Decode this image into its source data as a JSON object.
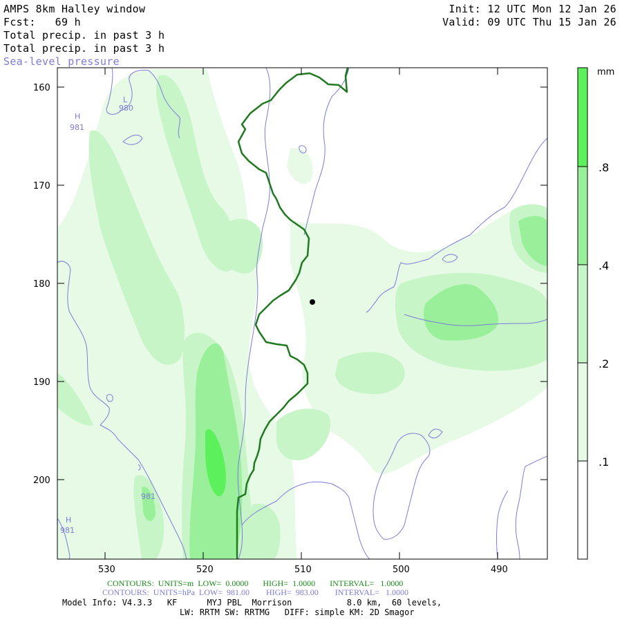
{
  "header": {
    "title": "AMPS 8km Halley window",
    "forecast": "Fcst:   69 h",
    "field1": "Total precip. in past 3 h",
    "field2": "Total precip. in past 3 h",
    "field3": "Sea-level pressure",
    "init": "Init: 12 UTC Mon 12 Jan 26",
    "valid": "Valid: 09 UTC Thu 15 Jan 26"
  },
  "axes": {
    "y_ticks": [
      "160",
      "170",
      "180",
      "190",
      "200"
    ],
    "x_ticks": [
      "530",
      "520",
      "510",
      "500",
      "490"
    ]
  },
  "colorbar": {
    "unit": "mm",
    "labels": [
      ".8",
      ".4",
      ".2",
      ".1"
    ],
    "colors": [
      "#5cf05c",
      "#9af09a",
      "#c8f5c8",
      "#e6fae6",
      "#ffffff"
    ]
  },
  "map_labels": {
    "low1": "L",
    "low1_val": "980",
    "high1": "H",
    "high1_val": "981",
    "iso_label": "981",
    "high2": "H",
    "high2_val": "981"
  },
  "footer": {
    "contours_precip": "CONTOURS:  UNITS=m  LOW=  0.0000       HIGH=  1.0000       INTERVAL=   1.0000",
    "contours_slp": "CONTOURS:  UNITS=hPa  LOW=  981.00        HIGH=  983.00        INTERVAL=   1.0000",
    "model_info": "Model Info: V4.3.3   KF      MYJ PBL  Morrison           8.0 km,  60 levels,",
    "model_info2": "LW: RRTM SW: RRTMG   DIFF: simple KM: 2D Smagor"
  },
  "colors": {
    "coast": "#1f7a1f",
    "isobar": "#7b7bd9"
  }
}
